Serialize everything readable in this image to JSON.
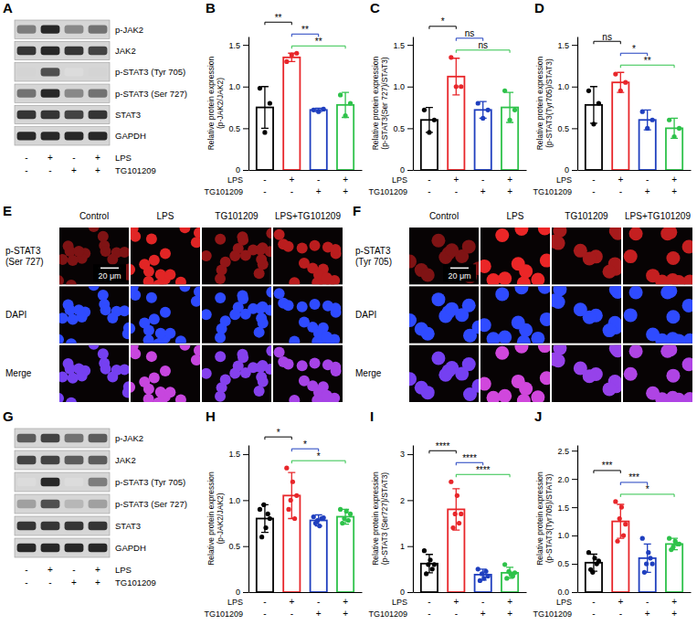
{
  "chart_data": [
    {
      "type": "bar",
      "panel": "B",
      "y_label": "Relative protein expression (p-JAK2/JAK2)",
      "categories": [
        null,
        null,
        null,
        null
      ],
      "values": [
        0.75,
        1.35,
        0.72,
        0.78
      ],
      "errors": [
        0.25,
        0.05,
        0.02,
        0.15
      ],
      "points": [
        [
          0.98,
          0.45,
          0.8
        ],
        [
          1.3,
          1.38,
          1.4
        ],
        [
          0.72,
          0.7,
          0.73
        ],
        [
          0.9,
          0.65,
          0.8
        ]
      ],
      "colors": [
        "#000000",
        "#e8262a",
        "#1f3fbf",
        "#2ec24a"
      ],
      "ylim": [
        0,
        1.6
      ],
      "yticks": [
        0,
        0.5,
        {
          "value": 1,
          "label": "1.0"
        },
        1.5
      ],
      "annotations": [
        {
          "from": 0,
          "to": 1,
          "label": "**"
        },
        {
          "from": 1,
          "to": 2,
          "label": "**"
        },
        {
          "from": 1,
          "to": 3,
          "label": "**"
        }
      ],
      "treatments": [
        {
          "name": "LPS",
          "signs": [
            "-",
            "+",
            "-",
            "+"
          ]
        },
        {
          "name": "TG101209",
          "signs": [
            "-",
            "-",
            "+",
            "+"
          ]
        }
      ]
    },
    {
      "type": "bar",
      "panel": "C",
      "y_label": "Relative protein expression (p-STAT3(Ser 727)/STAT3)",
      "categories": [
        null,
        null,
        null,
        null
      ],
      "values": [
        0.6,
        1.12,
        0.72,
        0.75
      ],
      "errors": [
        0.15,
        0.22,
        0.1,
        0.18
      ],
      "points": [
        [
          0.72,
          0.45,
          0.6
        ],
        [
          1.35,
          1.0,
          1.0
        ],
        [
          0.8,
          0.62,
          0.72
        ],
        [
          0.95,
          0.6,
          0.72
        ]
      ],
      "colors": [
        "#000000",
        "#e8262a",
        "#1f3fbf",
        "#2ec24a"
      ],
      "ylim": [
        0,
        1.6
      ],
      "yticks": [
        0,
        0.5,
        {
          "value": 1,
          "label": "1.0"
        },
        1.5
      ],
      "annotations": [
        {
          "from": 0,
          "to": 1,
          "label": "*"
        },
        {
          "from": 1,
          "to": 2,
          "label": "ns"
        },
        {
          "from": 1,
          "to": 3,
          "label": "ns"
        }
      ],
      "treatments": [
        {
          "name": "LPS",
          "signs": [
            "-",
            "+",
            "-",
            "+"
          ]
        },
        {
          "name": "TG101209",
          "signs": [
            "-",
            "-",
            "+",
            "+"
          ]
        }
      ]
    },
    {
      "type": "bar",
      "panel": "D",
      "y_label": "Relative protein expression (p-STAT3(Tyr705)/STAT3)",
      "categories": [
        null,
        null,
        null,
        null
      ],
      "values": [
        0.78,
        1.05,
        0.6,
        0.5
      ],
      "errors": [
        0.22,
        0.12,
        0.12,
        0.12
      ],
      "points": [
        [
          0.95,
          0.55,
          0.8
        ],
        [
          1.15,
          0.95,
          1.05
        ],
        [
          0.7,
          0.5,
          0.6
        ],
        [
          0.6,
          0.4,
          0.5
        ]
      ],
      "colors": [
        "#000000",
        "#e8262a",
        "#1f3fbf",
        "#2ec24a"
      ],
      "ylim": [
        0,
        1.6
      ],
      "yticks": [
        0,
        0.5,
        {
          "value": 1,
          "label": "1.0"
        },
        1.5
      ],
      "annotations": [
        {
          "from": 0,
          "to": 1,
          "label": "ns"
        },
        {
          "from": 1,
          "to": 2,
          "label": "*"
        },
        {
          "from": 1,
          "to": 3,
          "label": "**"
        }
      ],
      "treatments": [
        {
          "name": "LPS",
          "signs": [
            "-",
            "+",
            "-",
            "+"
          ]
        },
        {
          "name": "TG101209",
          "signs": [
            "-",
            "-",
            "+",
            "+"
          ]
        }
      ]
    },
    {
      "type": "bar",
      "panel": "H",
      "y_label": "Relative protein expression (p-JAK2/JAK2)",
      "categories": [
        null,
        null,
        null,
        null
      ],
      "values": [
        0.8,
        1.05,
        0.78,
        0.82
      ],
      "errors": [
        0.15,
        0.25,
        0.06,
        0.08
      ],
      "points": [
        [
          0.9,
          0.6,
          0.95,
          0.7,
          0.85,
          0.8
        ],
        [
          1.35,
          0.9,
          1.0,
          1.2,
          0.8,
          1.05
        ],
        [
          0.82,
          0.75,
          0.78,
          0.72,
          0.8,
          0.81
        ],
        [
          0.9,
          0.75,
          0.8,
          0.88,
          0.78,
          0.85
        ]
      ],
      "colors": [
        "#000000",
        "#e8262a",
        "#1f3fbf",
        "#2ec24a"
      ],
      "ylim": [
        0,
        1.6
      ],
      "yticks": [
        0,
        0.5,
        {
          "value": 1,
          "label": "1.0"
        },
        1.5
      ],
      "annotations": [
        {
          "from": 0,
          "to": 1,
          "label": "*"
        },
        {
          "from": 1,
          "to": 2,
          "label": "*"
        },
        {
          "from": 1,
          "to": 3,
          "label": "*"
        }
      ],
      "treatments": [
        {
          "name": "LPS",
          "signs": [
            "-",
            "+",
            "-",
            "+"
          ]
        },
        {
          "name": "TG101209",
          "signs": [
            "-",
            "-",
            "+",
            "+"
          ]
        }
      ]
    },
    {
      "type": "bar",
      "panel": "I",
      "y_label": "Relative protein expression (p-STAT3 (Ser727)/STAT3)",
      "categories": [
        null,
        null,
        null,
        null
      ],
      "values": [
        0.62,
        1.8,
        0.38,
        0.42
      ],
      "errors": [
        0.2,
        0.45,
        0.12,
        0.12
      ],
      "points": [
        [
          0.9,
          0.4,
          0.6,
          0.7,
          0.5,
          0.6
        ],
        [
          2.4,
          1.4,
          1.7,
          2.1,
          1.5,
          1.7
        ],
        [
          0.5,
          0.25,
          0.4,
          0.3,
          0.45,
          0.35
        ],
        [
          0.6,
          0.3,
          0.45,
          0.4,
          0.35,
          0.42
        ]
      ],
      "colors": [
        "#000000",
        "#e8262a",
        "#1f3fbf",
        "#2ec24a"
      ],
      "ylim": [
        0,
        3.2
      ],
      "yticks": [
        0,
        1,
        2,
        3
      ],
      "annotations": [
        {
          "from": 0,
          "to": 1,
          "label": "****"
        },
        {
          "from": 1,
          "to": 2,
          "label": "****"
        },
        {
          "from": 1,
          "to": 3,
          "label": "****"
        }
      ],
      "treatments": [
        {
          "name": "LPS",
          "signs": [
            "-",
            "+",
            "-",
            "+"
          ]
        },
        {
          "name": "TG101209",
          "signs": [
            "-",
            "-",
            "+",
            "+"
          ]
        }
      ]
    },
    {
      "type": "bar",
      "panel": "J",
      "y_label": "Relative protein expression (p-STAT3(Tyr705)/STAT3)",
      "categories": [
        null,
        null,
        null,
        null
      ],
      "values": [
        0.52,
        1.25,
        0.6,
        0.85
      ],
      "errors": [
        0.15,
        0.3,
        0.25,
        0.1
      ],
      "points": [
        [
          0.7,
          0.4,
          0.35,
          0.6,
          0.5,
          0.55
        ],
        [
          1.6,
          0.9,
          1.3,
          1.5,
          1.0,
          1.2
        ],
        [
          0.95,
          0.35,
          0.5,
          0.7,
          0.6,
          0.5
        ],
        [
          0.95,
          0.75,
          0.8,
          0.9,
          0.85,
          0.85
        ]
      ],
      "colors": [
        "#000000",
        "#e8262a",
        "#1f3fbf",
        "#2ec24a"
      ],
      "ylim": [
        0,
        2.6
      ],
      "yticks": [
        {
          "value": 0,
          "label": "0.0"
        },
        0.5,
        {
          "value": 1,
          "label": "1.0"
        },
        1.5,
        {
          "value": 2,
          "label": "2.0"
        },
        2.5
      ],
      "annotations": [
        {
          "from": 0,
          "to": 1,
          "label": "***"
        },
        {
          "from": 1,
          "to": 2,
          "label": "***"
        },
        {
          "from": 1,
          "to": 3,
          "label": "*"
        }
      ],
      "treatments": [
        {
          "name": "LPS",
          "signs": [
            "-",
            "+",
            "-",
            "+"
          ]
        },
        {
          "name": "TG101209",
          "signs": [
            "-",
            "-",
            "+",
            "+"
          ]
        }
      ]
    }
  ],
  "blots": [
    {
      "panel": "A",
      "rows": [
        {
          "label": "p-JAK2",
          "intensity": [
            0.55,
            0.9,
            0.5,
            0.6
          ]
        },
        {
          "label": "JAK2",
          "intensity": [
            0.85,
            0.9,
            0.85,
            0.8
          ]
        },
        {
          "label": "p-STAT3 (Tyr 705)",
          "intensity": [
            0.15,
            0.75,
            0.1,
            0.15
          ]
        },
        {
          "label": "p-STAT3 (Ser 727)",
          "intensity": [
            0.6,
            0.9,
            0.5,
            0.6
          ]
        },
        {
          "label": "STAT3",
          "intensity": [
            0.85,
            0.85,
            0.8,
            0.85
          ]
        },
        {
          "label": "GAPDH",
          "intensity": [
            0.9,
            0.9,
            0.9,
            0.9
          ]
        }
      ],
      "treatments": [
        {
          "name": "LPS",
          "signs": [
            "-",
            "+",
            "-",
            "+"
          ]
        },
        {
          "name": "TG101209",
          "signs": [
            "-",
            "-",
            "+",
            "+"
          ]
        }
      ]
    },
    {
      "panel": "G",
      "rows": [
        {
          "label": "p-JAK2",
          "intensity": [
            0.7,
            0.8,
            0.6,
            0.7
          ]
        },
        {
          "label": "JAK2",
          "intensity": [
            0.8,
            0.8,
            0.7,
            0.7
          ]
        },
        {
          "label": "p-STAT3 (Tyr 705)",
          "intensity": [
            0.1,
            0.9,
            0.1,
            0.55
          ]
        },
        {
          "label": "p-STAT3 (Ser 727)",
          "intensity": [
            0.4,
            0.75,
            0.3,
            0.4
          ]
        },
        {
          "label": "STAT3",
          "intensity": [
            0.85,
            0.85,
            0.85,
            0.85
          ]
        },
        {
          "label": "GAPDH",
          "intensity": [
            0.9,
            0.9,
            0.9,
            0.9
          ]
        }
      ],
      "treatments": [
        {
          "name": "LPS",
          "signs": [
            "-",
            "+",
            "-",
            "+"
          ]
        },
        {
          "name": "TG101209",
          "signs": [
            "-",
            "-",
            "+",
            "+"
          ]
        }
      ]
    }
  ],
  "images": [
    {
      "panel": "E",
      "columns": [
        "Control",
        "LPS",
        "TG101209",
        "LPS+TG101209"
      ],
      "rows": [
        "p-STAT3 (Ser 727)",
        "DAPI",
        "Merge"
      ],
      "scale_bar": "20 μm",
      "signal": [
        0.35,
        0.85,
        0.45,
        0.65
      ]
    },
    {
      "panel": "F",
      "columns": [
        "Control",
        "LPS",
        "TG101209",
        "LPS+TG101209"
      ],
      "rows": [
        "p-STAT3 (Tyr 705)",
        "DAPI",
        "Merge"
      ],
      "scale_bar": "20 μm",
      "signal": [
        0.35,
        0.9,
        0.55,
        0.7
      ]
    }
  ]
}
